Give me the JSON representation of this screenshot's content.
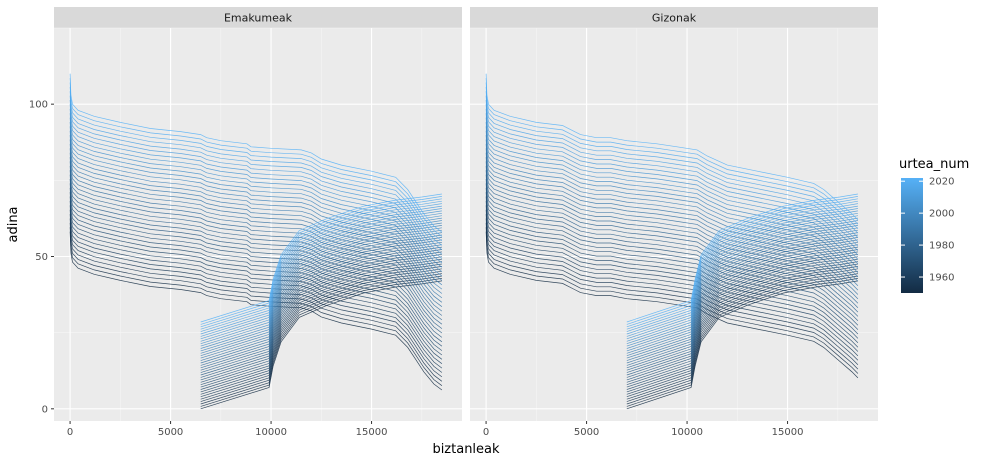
{
  "chart_data": {
    "type": "line",
    "facets": [
      "Emakumeak",
      "Gizonak"
    ],
    "xlabel": "biztanleak",
    "ylabel": "adina",
    "xlim": [
      -800,
      19500
    ],
    "ylim": [
      -4,
      125
    ],
    "x_ticks": [
      0,
      5000,
      10000,
      15000
    ],
    "y_ticks": [
      0,
      50,
      100
    ],
    "grid": true,
    "legend": {
      "title": "urtea_num",
      "position": "right",
      "ticks": [
        1960,
        1980,
        2000,
        2020
      ],
      "range": [
        1950,
        2022
      ],
      "color_low": "#132B43",
      "color_high": "#56B1F7"
    },
    "series_years": {
      "start": 1950,
      "end": 2022,
      "step": 2
    },
    "series_offsets": {
      "age_per_year": 0.72,
      "age_base": -17,
      "x_per_year": 0
    },
    "profiles": [
      {
        "facet": "Emakumeak",
        "points": [
          [
            6500,
            0
          ],
          [
            9900,
            7
          ],
          [
            10100,
            14
          ],
          [
            10500,
            22
          ],
          [
            11400,
            30
          ],
          [
            12800,
            34
          ],
          [
            14600,
            38
          ],
          [
            16200,
            40
          ],
          [
            17500,
            41
          ],
          [
            18500,
            42
          ]
        ],
        "offset_points": [
          [
            0,
            110
          ],
          [
            40,
            103
          ],
          [
            120,
            100
          ],
          [
            400,
            98
          ],
          [
            1200,
            96
          ],
          [
            2500,
            94
          ],
          [
            4000,
            92
          ],
          [
            5500,
            91
          ],
          [
            6500,
            90
          ],
          [
            6800,
            89
          ],
          [
            7500,
            88
          ],
          [
            8800,
            87
          ],
          [
            9000,
            86
          ],
          [
            10000,
            85.5
          ],
          [
            11500,
            85
          ],
          [
            12000,
            84
          ],
          [
            12500,
            82
          ],
          [
            13500,
            80
          ],
          [
            15000,
            78
          ],
          [
            16200,
            76
          ],
          [
            16800,
            72
          ],
          [
            17200,
            68
          ],
          [
            17600,
            64
          ],
          [
            18100,
            60
          ],
          [
            18500,
            58
          ]
        ]
      },
      {
        "facet": "Gizonak",
        "points": [
          [
            7000,
            0
          ],
          [
            10200,
            7
          ],
          [
            10400,
            14
          ],
          [
            10700,
            22
          ],
          [
            11600,
            30
          ],
          [
            13000,
            34
          ],
          [
            14800,
            38
          ],
          [
            16400,
            40
          ],
          [
            17600,
            41
          ],
          [
            18500,
            42
          ]
        ],
        "offset_points": [
          [
            0,
            110
          ],
          [
            40,
            103
          ],
          [
            120,
            100
          ],
          [
            400,
            98
          ],
          [
            1200,
            96
          ],
          [
            2500,
            94
          ],
          [
            3800,
            93
          ],
          [
            4400,
            91
          ],
          [
            4700,
            90
          ],
          [
            5500,
            89
          ],
          [
            6200,
            89
          ],
          [
            7000,
            88
          ],
          [
            8500,
            87
          ],
          [
            9500,
            86
          ],
          [
            10500,
            85
          ],
          [
            11000,
            83
          ],
          [
            12000,
            80
          ],
          [
            13500,
            78
          ],
          [
            15000,
            76
          ],
          [
            16300,
            74
          ],
          [
            16800,
            72
          ],
          [
            17500,
            68
          ],
          [
            18200,
            64
          ],
          [
            18500,
            62
          ]
        ]
      }
    ]
  }
}
